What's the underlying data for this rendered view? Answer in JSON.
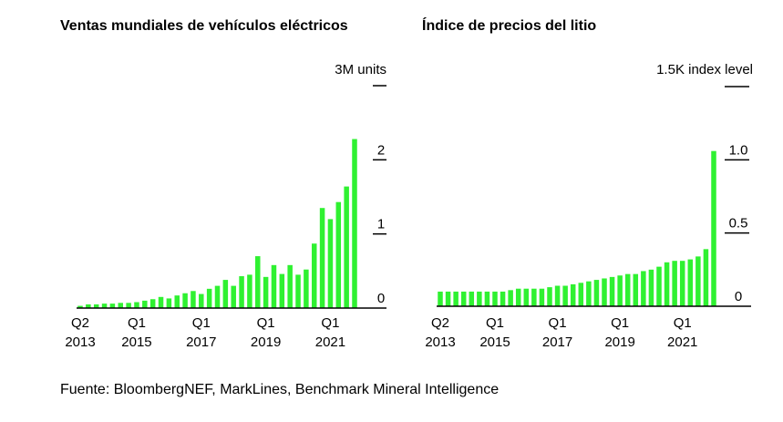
{
  "source": "Fuente: BloombergNEF, MarkLines, Benchmark Mineral Intelligence",
  "colors": {
    "bar": "#2ff131",
    "axis": "#000000"
  },
  "chart_data": [
    {
      "type": "bar",
      "title": "Ventas mundiales de vehículos eléctricos",
      "unit_label": "3M units",
      "ylim": [
        0,
        3
      ],
      "y_ticks": [
        {
          "value": 0,
          "label": "0"
        },
        {
          "value": 1,
          "label": "1"
        },
        {
          "value": 2,
          "label": "2"
        },
        {
          "value": 3,
          "label": ""
        }
      ],
      "x_ticks": [
        {
          "index": 0,
          "label1": "Q2",
          "label2": "2013"
        },
        {
          "index": 7,
          "label1": "Q1",
          "label2": "2015"
        },
        {
          "index": 15,
          "label1": "Q1",
          "label2": "2017"
        },
        {
          "index": 23,
          "label1": "Q1",
          "label2": "2019"
        },
        {
          "index": 31,
          "label1": "Q1",
          "label2": "2021"
        }
      ],
      "values": [
        0.03,
        0.05,
        0.05,
        0.06,
        0.06,
        0.07,
        0.07,
        0.08,
        0.1,
        0.12,
        0.15,
        0.13,
        0.17,
        0.2,
        0.23,
        0.19,
        0.26,
        0.3,
        0.38,
        0.3,
        0.43,
        0.45,
        0.7,
        0.42,
        0.58,
        0.46,
        0.58,
        0.45,
        0.52,
        0.87,
        1.35,
        1.2,
        1.43,
        1.64,
        2.28
      ]
    },
    {
      "type": "bar",
      "title": "Índice de precios del litio",
      "unit_label": "1.5K index level",
      "ylim": [
        0,
        1.5
      ],
      "y_ticks": [
        {
          "value": 0,
          "label": "0"
        },
        {
          "value": 0.5,
          "label": "0.5"
        },
        {
          "value": 1.0,
          "label": "1.0"
        },
        {
          "value": 1.5,
          "label": ""
        }
      ],
      "x_ticks": [
        {
          "index": 0,
          "label1": "Q2",
          "label2": "2013"
        },
        {
          "index": 7,
          "label1": "Q1",
          "label2": "2015"
        },
        {
          "index": 15,
          "label1": "Q1",
          "label2": "2017"
        },
        {
          "index": 23,
          "label1": "Q1",
          "label2": "2019"
        },
        {
          "index": 31,
          "label1": "Q1",
          "label2": "2021"
        }
      ],
      "values": [
        0.1,
        0.1,
        0.1,
        0.1,
        0.1,
        0.1,
        0.1,
        0.1,
        0.1,
        0.11,
        0.12,
        0.12,
        0.12,
        0.12,
        0.13,
        0.14,
        0.14,
        0.15,
        0.16,
        0.17,
        0.18,
        0.19,
        0.2,
        0.21,
        0.22,
        0.22,
        0.24,
        0.25,
        0.27,
        0.3,
        0.31,
        0.31,
        0.32,
        0.34,
        0.39,
        1.06
      ]
    }
  ]
}
